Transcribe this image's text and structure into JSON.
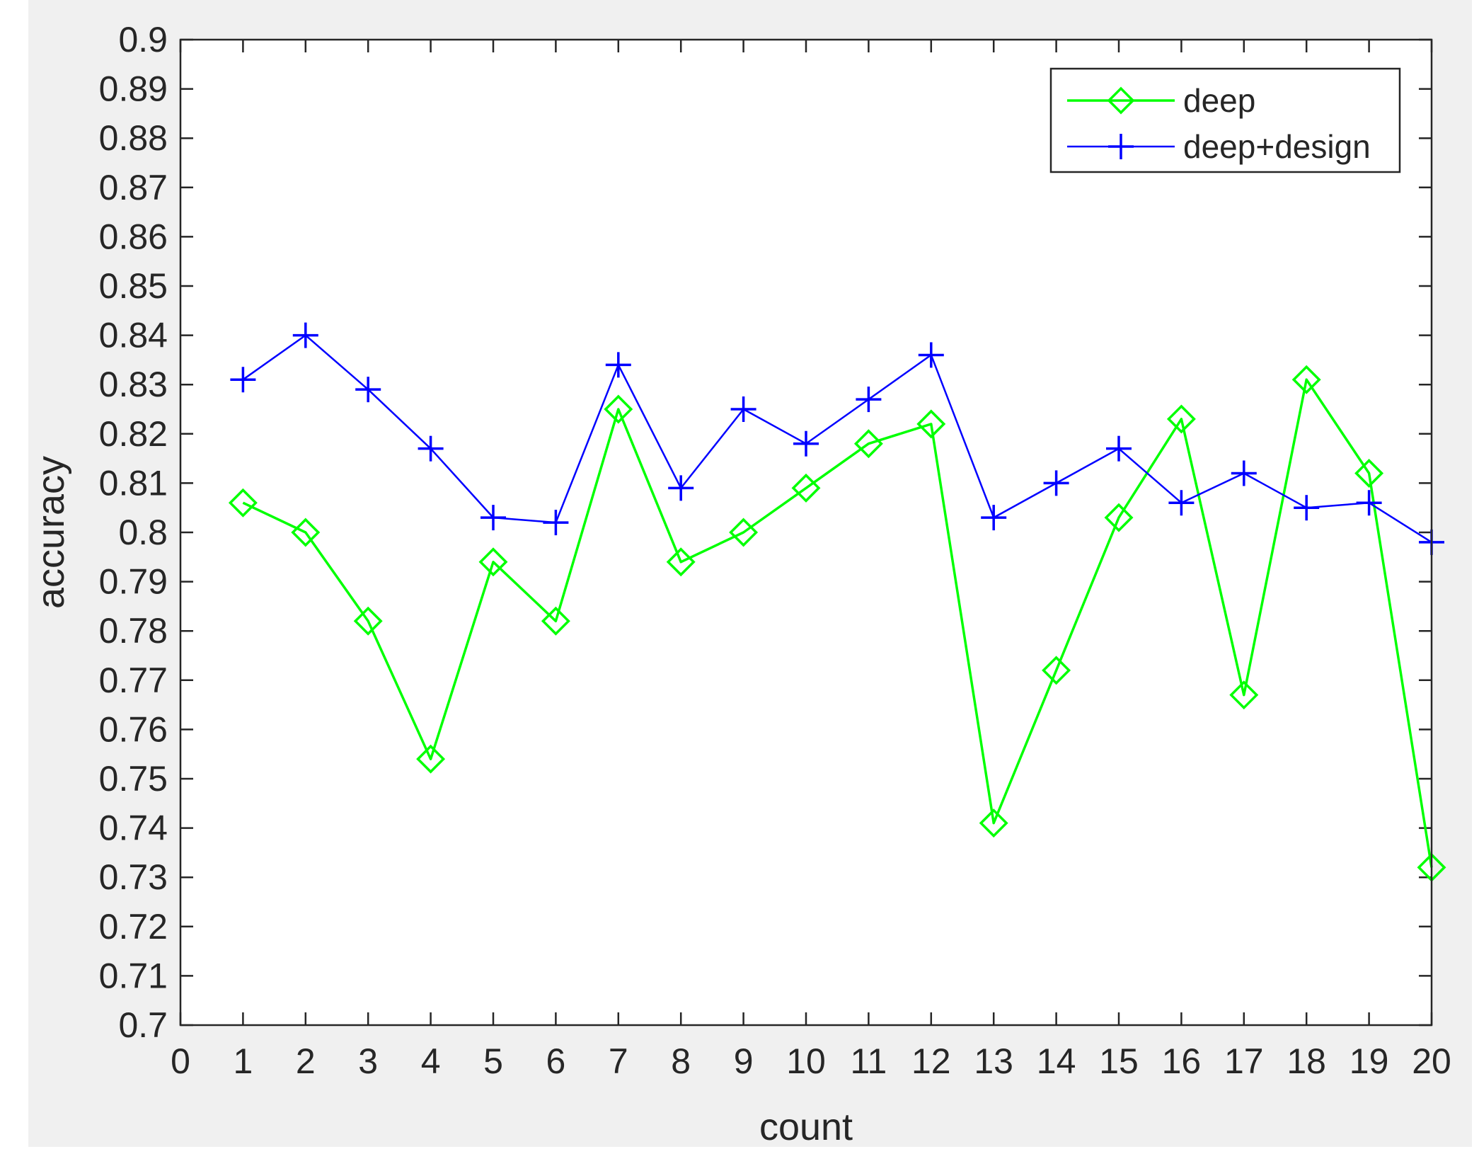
{
  "chart_data": {
    "type": "line",
    "title": "",
    "xlabel": "count",
    "ylabel": "accuracy",
    "xlim": [
      0,
      20
    ],
    "ylim": [
      0.7,
      0.9
    ],
    "x_ticks": [
      "0",
      "1",
      "2",
      "3",
      "4",
      "5",
      "6",
      "7",
      "8",
      "9",
      "10",
      "11",
      "12",
      "13",
      "14",
      "15",
      "16",
      "17",
      "18",
      "19",
      "20"
    ],
    "y_ticks": [
      "0.7",
      "0.71",
      "0.72",
      "0.73",
      "0.74",
      "0.75",
      "0.76",
      "0.77",
      "0.78",
      "0.79",
      "0.8",
      "0.81",
      "0.82",
      "0.83",
      "0.84",
      "0.85",
      "0.86",
      "0.87",
      "0.88",
      "0.89",
      "0.9"
    ],
    "grid": false,
    "legend_position": "top-right",
    "x": [
      1,
      2,
      3,
      4,
      5,
      6,
      7,
      8,
      9,
      10,
      11,
      12,
      13,
      14,
      15,
      16,
      17,
      18,
      19,
      20
    ],
    "series": [
      {
        "name": "deep",
        "color": "#00ff00",
        "marker": "diamond",
        "values": [
          0.806,
          0.8,
          0.782,
          0.754,
          0.794,
          0.782,
          0.825,
          0.794,
          0.8,
          0.809,
          0.818,
          0.822,
          0.741,
          0.772,
          0.803,
          0.823,
          0.767,
          0.831,
          0.812,
          0.732
        ]
      },
      {
        "name": "deep+design",
        "color": "#0000ff",
        "marker": "plus",
        "values": [
          0.831,
          0.84,
          0.829,
          0.817,
          0.803,
          0.802,
          0.834,
          0.809,
          0.825,
          0.818,
          0.827,
          0.836,
          0.803,
          0.81,
          0.817,
          0.806,
          0.812,
          0.805,
          0.806,
          0.798
        ]
      }
    ]
  }
}
